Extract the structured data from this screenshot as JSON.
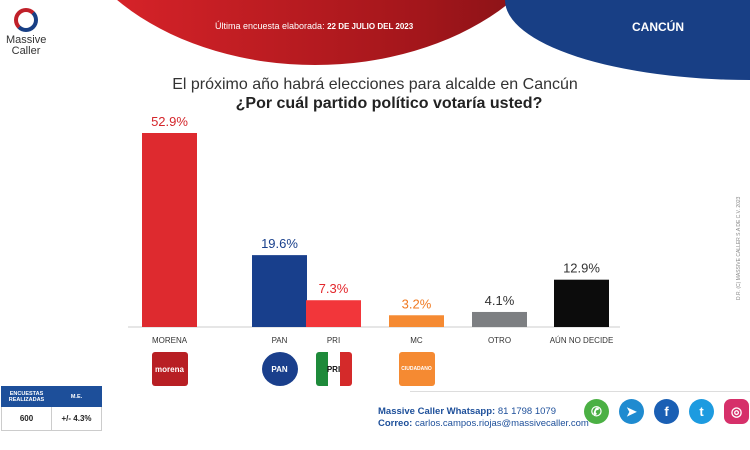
{
  "header": {
    "date_label": "Última encuesta elaborada:",
    "date_value": "22 DE JULIO DEL 2023",
    "city": "CANCÚN"
  },
  "logo": {
    "line1": "Massive",
    "line2": "Caller"
  },
  "copyright": "D.R. (C) MASSIVE CALLER S.A DE C.V. 2023",
  "chart_data": {
    "type": "bar",
    "title": "El próximo año habrá elecciones para alcalde en Cancún",
    "subtitle": "¿Por cuál partido político votaría usted?",
    "categories": [
      "MORENA",
      "PAN",
      "PRI",
      "MC",
      "OTRO",
      "AÚN NO DECIDE"
    ],
    "values": [
      52.9,
      19.6,
      7.3,
      3.2,
      4.1,
      12.9
    ],
    "value_labels": [
      "52.9%",
      "19.6%",
      "7.3%",
      "3.2%",
      "4.1%",
      "12.9%"
    ],
    "colors": [
      "#de2a2f",
      "#183f8c",
      "#f2363a",
      "#f58a32",
      "#7d7f82",
      "#0c0c0c"
    ],
    "label_colors": [
      "#d4262b",
      "#183f8c",
      "#e3262b",
      "#f07a22",
      "#333333",
      "#333333"
    ],
    "ylim": [
      0,
      55
    ],
    "grid": false
  },
  "party_logos": [
    {
      "name": "morena",
      "color": "#b81f24",
      "text": "morena"
    },
    {
      "name": "PAN",
      "color": "#1a3f8c",
      "text": "PAN"
    },
    {
      "name": "PRI",
      "color": "#bbbbbb",
      "text": "PRI"
    },
    {
      "name": "MC",
      "color": "#f58a32",
      "text": "CIUDADANO"
    }
  ],
  "stats": {
    "h1": "ENCUESTAS REALIZADAS",
    "h2": "M.E.",
    "v1": "600",
    "v2": "+/- 4.3%"
  },
  "contact": {
    "wa_label": "Massive Caller Whatsapp:",
    "wa": "81 1798 1079",
    "mail_label": "Correo:",
    "mail": "carlos.campos.riojas@massivecaller.com"
  },
  "social": [
    {
      "icon": "whatsapp-icon",
      "color": "#4bb044",
      "glyph": "✆"
    },
    {
      "icon": "telegram-icon",
      "color": "#1f8bd0",
      "glyph": "➤"
    },
    {
      "icon": "facebook-icon",
      "color": "#1a5fb4",
      "glyph": "f"
    },
    {
      "icon": "twitter-icon",
      "color": "#1d9be0",
      "glyph": "t"
    },
    {
      "icon": "instagram-icon",
      "color": "#d6306a",
      "glyph": "◎"
    }
  ]
}
